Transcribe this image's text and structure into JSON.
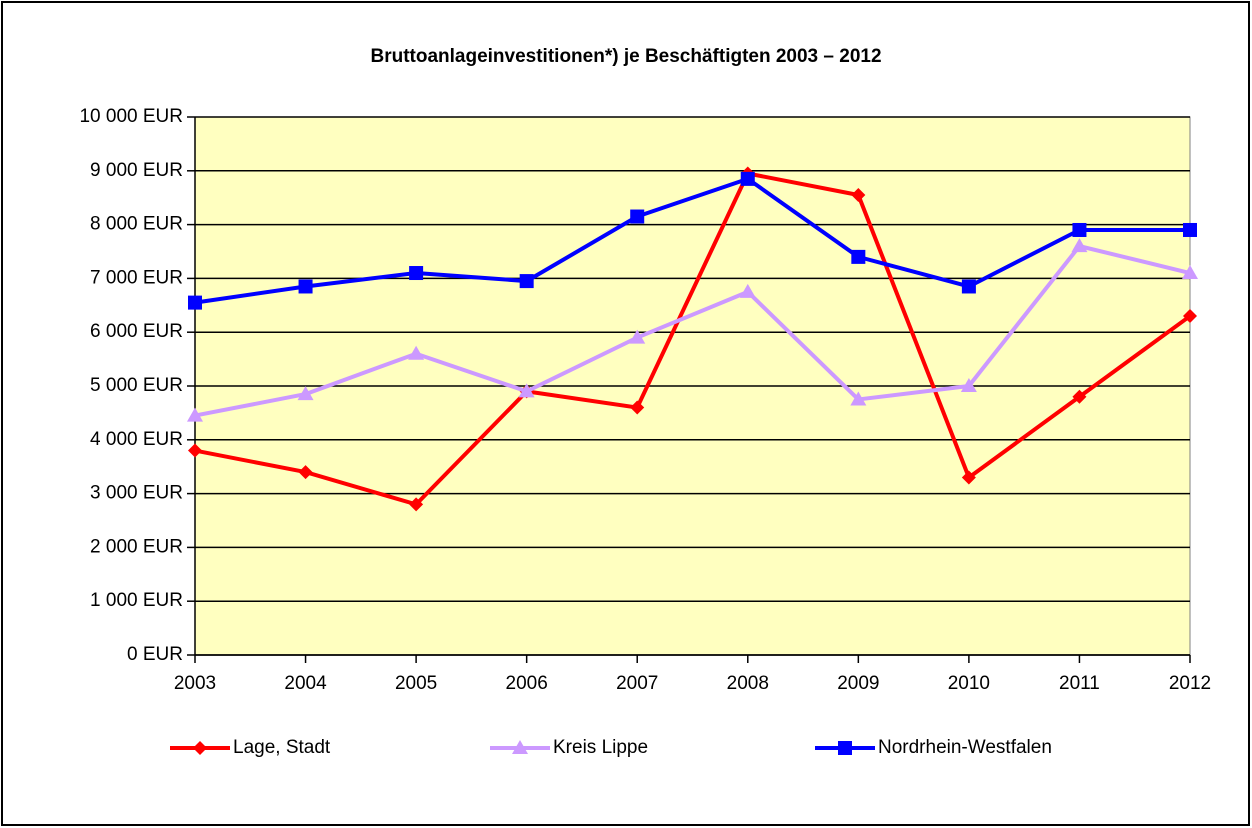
{
  "chart_data": {
    "type": "line",
    "title": "Bruttoanlageinvestitionen*) je Beschäftigten 2003 – 2012",
    "categories": [
      "2003",
      "2004",
      "2005",
      "2006",
      "2007",
      "2008",
      "2009",
      "2010",
      "2011",
      "2012"
    ],
    "series": [
      {
        "name": "Lage, Stadt",
        "color": "#ff0000",
        "marker": "diamond",
        "values": [
          3800,
          3400,
          2800,
          4900,
          4600,
          8950,
          8550,
          3300,
          4800,
          6300
        ]
      },
      {
        "name": "Kreis Lippe",
        "color": "#cc99ff",
        "marker": "triangle",
        "values": [
          4450,
          4850,
          5600,
          4900,
          5900,
          6750,
          4750,
          5000,
          7600,
          7100
        ]
      },
      {
        "name": "Nordrhein-Westfalen",
        "color": "#0000ff",
        "marker": "square",
        "values": [
          6550,
          6850,
          7100,
          6950,
          8150,
          8850,
          7400,
          6850,
          7900,
          7900
        ]
      }
    ],
    "ylim": [
      0,
      10000
    ],
    "yticks": [
      {
        "value": 0,
        "label": "0 EUR"
      },
      {
        "value": 1000,
        "label": "1 000 EUR"
      },
      {
        "value": 2000,
        "label": "2 000 EUR"
      },
      {
        "value": 3000,
        "label": "3 000 EUR"
      },
      {
        "value": 4000,
        "label": "4 000 EUR"
      },
      {
        "value": 5000,
        "label": "5 000 EUR"
      },
      {
        "value": 6000,
        "label": "6 000 EUR"
      },
      {
        "value": 7000,
        "label": "7 000 EUR"
      },
      {
        "value": 8000,
        "label": "8 000 EUR"
      },
      {
        "value": 9000,
        "label": "9 000 EUR"
      },
      {
        "value": 10000,
        "label": "10 000 EUR"
      }
    ],
    "grid": true,
    "plot_background": "#ffffc0",
    "legend": "bottom"
  }
}
